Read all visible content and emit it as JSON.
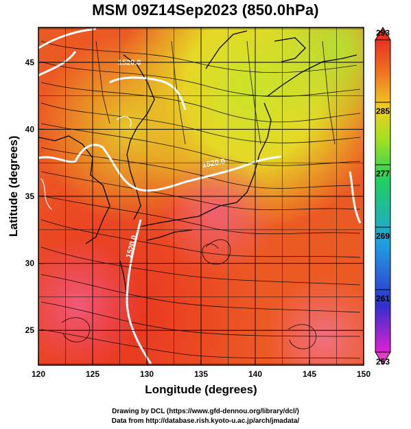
{
  "title": "MSM 09Z14Sep2023 (850.0hPa)",
  "xlabel": "Longitude (degrees)",
  "ylabel": "Latitude (degrees)",
  "credits": {
    "line1": "Drawing by DCL (https://www.gfd-dennou.org/library/dcl/)",
    "line2": "Data from http://database.rish.kyoto-u.ac.jp/arch/jmadata/"
  },
  "chart_data": {
    "type": "heatmap",
    "xlim": [
      120,
      150
    ],
    "ylim": [
      22.4,
      47.6
    ],
    "xticks": [
      120,
      125,
      130,
      135,
      140,
      145,
      150
    ],
    "yticks": [
      25,
      30,
      35,
      40,
      45
    ],
    "grid": true,
    "colorbar": {
      "min": 253,
      "max": 293,
      "ticks": [
        253,
        261,
        269,
        277,
        285,
        293
      ],
      "colors": [
        "#e020d0",
        "#3030d0",
        "#20a0e0",
        "#20d060",
        "#a0e020",
        "#f0d020",
        "#f07020",
        "#e83020"
      ]
    },
    "contours": [
      {
        "label": "1520.0",
        "lon": 128.4,
        "lat": 44.8
      },
      {
        "label": "1520.0",
        "lon": 136.2,
        "lat": 37.3
      },
      {
        "label": "1520.0",
        "lon": 128.8,
        "lat": 31.2
      }
    ],
    "overlays": [
      "wind streamlines",
      "coastlines",
      "geopotential height contour (white)"
    ]
  }
}
